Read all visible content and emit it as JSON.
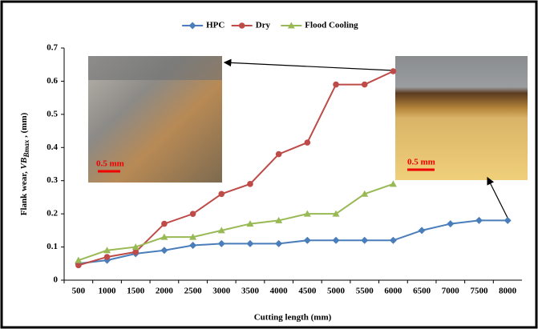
{
  "chart_data": {
    "type": "line",
    "y_label": [
      "Flank wear, ",
      "VB",
      "Bmax",
      " , (mm)"
    ],
    "x_label": "Cutting length (mm)",
    "categories": [
      "500",
      "1000",
      "1500",
      "2000",
      "2500",
      "3000",
      "3500",
      "4000",
      "4500",
      "5000",
      "5500",
      "6000",
      "6500",
      "7000",
      "7500",
      "8000"
    ],
    "series": [
      {
        "name": "HPC",
        "color": "#4a7ebb",
        "marker": "diamond",
        "values": [
          0.05,
          0.06,
          0.08,
          0.09,
          0.105,
          0.11,
          0.11,
          0.11,
          0.12,
          0.12,
          0.12,
          0.12,
          0.15,
          0.17,
          0.18,
          0.18
        ]
      },
      {
        "name": "Dry",
        "color": "#be4b48",
        "marker": "circle",
        "values": [
          0.045,
          0.07,
          0.085,
          0.17,
          0.2,
          0.26,
          0.29,
          0.38,
          0.415,
          0.59,
          0.59,
          0.63,
          null,
          null,
          null,
          null
        ]
      },
      {
        "name": "Flood Cooling",
        "color": "#98b954",
        "marker": "triangle",
        "values": [
          0.06,
          0.09,
          0.1,
          0.13,
          0.13,
          0.15,
          0.17,
          0.18,
          0.2,
          0.2,
          0.26,
          0.29,
          null,
          null,
          null,
          null
        ]
      }
    ],
    "ylim": [
      0,
      0.7
    ],
    "yticks": [
      0,
      0.1,
      0.2,
      0.3,
      0.4,
      0.5,
      0.6,
      0.7
    ],
    "legend": "top",
    "annotations": [
      "0.5 mm",
      "0.5 mm"
    ]
  }
}
